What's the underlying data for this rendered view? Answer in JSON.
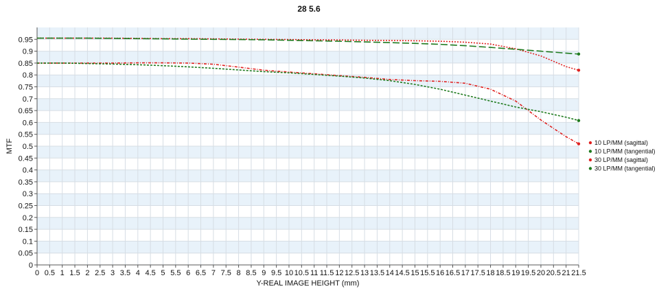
{
  "chart_data": {
    "type": "line",
    "title": "28 5.6",
    "xlabel": "Y-REAL IMAGE HEIGHT (mm)",
    "ylabel": "MTF",
    "xlim": [
      0,
      21.5
    ],
    "ylim": [
      0,
      1
    ],
    "x_ticks": [
      "0",
      "0.5",
      "1",
      "1.5",
      "2",
      "2.5",
      "3",
      "3.5",
      "4",
      "4.5",
      "5",
      "5.5",
      "6",
      "6.5",
      "7",
      "7.5",
      "8",
      "8.5",
      "9",
      "9.5",
      "10",
      "10.5",
      "11",
      "11.5",
      "12",
      "12.5",
      "13",
      "13.5",
      "14",
      "14.5",
      "15",
      "15.5",
      "16",
      "16.5",
      "17",
      "17.5",
      "18",
      "18.5",
      "19",
      "19.5",
      "20",
      "20.5",
      "21",
      "21.5"
    ],
    "y_ticks": [
      "0",
      "0.05",
      "0.1",
      "0.15",
      "0.2",
      "0.25",
      "0.3",
      "0.35",
      "0.4",
      "0.45",
      "0.5",
      "0.55",
      "0.6",
      "0.65",
      "0.7",
      "0.75",
      "0.8",
      "0.85",
      "0.9",
      "0.95"
    ],
    "grid": true,
    "legend_position": "right",
    "x": [
      0,
      1,
      2,
      3,
      4,
      5,
      6,
      7,
      8,
      9,
      10,
      11,
      12,
      13,
      14,
      15,
      16,
      17,
      18,
      19,
      20,
      21,
      21.5
    ],
    "series": [
      {
        "name": "10 LP/MM (sagittal)",
        "color": "#e0201e",
        "dash": "2,2",
        "values": [
          0.955,
          0.955,
          0.955,
          0.955,
          0.954,
          0.953,
          0.953,
          0.952,
          0.951,
          0.95,
          0.949,
          0.948,
          0.947,
          0.946,
          0.945,
          0.944,
          0.942,
          0.938,
          0.93,
          0.91,
          0.88,
          0.835,
          0.82
        ]
      },
      {
        "name": "10 LP/MM (tangential)",
        "color": "#1e7a1e",
        "dash": "10,4",
        "values": [
          0.955,
          0.955,
          0.955,
          0.954,
          0.953,
          0.952,
          0.951,
          0.95,
          0.949,
          0.948,
          0.946,
          0.944,
          0.942,
          0.939,
          0.936,
          0.933,
          0.929,
          0.923,
          0.916,
          0.908,
          0.9,
          0.892,
          0.888
        ]
      },
      {
        "name": "30 LP/MM (sagittal)",
        "color": "#e0201e",
        "dash": "4,2,1,2",
        "values": [
          0.85,
          0.85,
          0.85,
          0.85,
          0.851,
          0.851,
          0.85,
          0.845,
          0.833,
          0.82,
          0.812,
          0.805,
          0.797,
          0.79,
          0.781,
          0.776,
          0.773,
          0.765,
          0.74,
          0.69,
          0.61,
          0.54,
          0.51
        ]
      },
      {
        "name": "30 LP/MM (tangential)",
        "color": "#1e7a1e",
        "dash": "3,2",
        "values": [
          0.85,
          0.85,
          0.848,
          0.846,
          0.843,
          0.839,
          0.834,
          0.828,
          0.821,
          0.814,
          0.809,
          0.802,
          0.795,
          0.787,
          0.776,
          0.76,
          0.74,
          0.715,
          0.69,
          0.665,
          0.645,
          0.622,
          0.608
        ]
      }
    ]
  }
}
